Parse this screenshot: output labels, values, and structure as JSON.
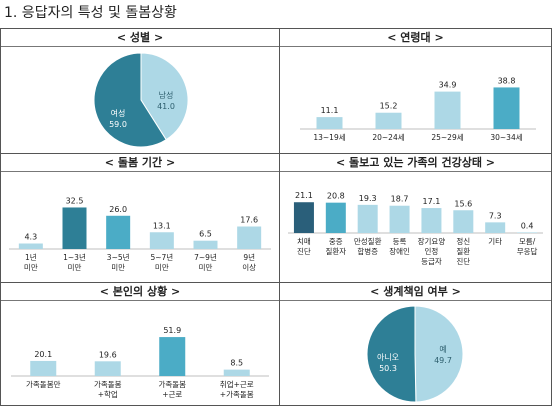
{
  "page_title": "1. 응답자의 특성 및 돌봄상황",
  "colors": {
    "light": "#add8e6",
    "dark": "#2e7f96",
    "mid": "#4bacc6",
    "navy": "#2a5f7a"
  },
  "chart_data": [
    {
      "id": "gender",
      "type": "pie",
      "title": "< 성별 >",
      "slices": [
        {
          "label": "남성",
          "value": 41.0,
          "value_text": "41.0",
          "color": "#add8e6"
        },
        {
          "label": "여성",
          "value": 59.0,
          "value_text": "59.0",
          "color": "#2e7f96"
        }
      ]
    },
    {
      "id": "age",
      "type": "bar",
      "title": "< 연령대 >",
      "categories": [
        "13~19세",
        "20~24세",
        "25~29세",
        "30~34세"
      ],
      "values": [
        11.1,
        15.2,
        34.9,
        38.8
      ],
      "colors": [
        "#add8e6",
        "#add8e6",
        "#add8e6",
        "#4bacc6"
      ],
      "ylim": [
        0,
        42
      ]
    },
    {
      "id": "duration",
      "type": "bar",
      "title": "< 돌봄 기간 >",
      "categories": [
        "1년\n미만",
        "1~3년\n미만",
        "3~5년\n미만",
        "5~7년\n미만",
        "7~9년\n미만",
        "9년\n이상"
      ],
      "values": [
        4.3,
        32.5,
        26.0,
        13.1,
        6.5,
        17.6
      ],
      "colors": [
        "#add8e6",
        "#2e7f96",
        "#4bacc6",
        "#add8e6",
        "#add8e6",
        "#add8e6"
      ],
      "ylim": [
        0,
        36
      ]
    },
    {
      "id": "family_health",
      "type": "bar",
      "title": "< 돌보고 있는 가족의 건강상태 >",
      "categories": [
        "치매\n진단",
        "중증\n질환자",
        "만성질환\n합병증",
        "등록\n장애인",
        "장기요양\n인정\n등급자",
        "정신\n질환\n진단",
        "기타",
        "모름/\n무응답"
      ],
      "values": [
        21.1,
        20.8,
        19.3,
        18.7,
        17.1,
        15.6,
        7.3,
        0.4
      ],
      "colors": [
        "#2a5f7a",
        "#4bacc6",
        "#add8e6",
        "#add8e6",
        "#add8e6",
        "#add8e6",
        "#add8e6",
        "#add8e6"
      ],
      "ylim": [
        0,
        24
      ]
    },
    {
      "id": "own_status",
      "type": "bar",
      "title": "< 본인의 상황 >",
      "categories": [
        "가족돌봄만",
        "가족돌봄\n+학업",
        "가족돌봄\n+근로",
        "취업+근로\n+가족돌봄"
      ],
      "values": [
        20.1,
        19.6,
        51.9,
        8.5
      ],
      "colors": [
        "#add8e6",
        "#add8e6",
        "#4bacc6",
        "#add8e6"
      ],
      "ylim": [
        0,
        56
      ]
    },
    {
      "id": "livelihood",
      "type": "pie",
      "title": "< 생계책임 여부 >",
      "slices": [
        {
          "label": "예",
          "value": 49.7,
          "value_text": "49.7",
          "color": "#add8e6"
        },
        {
          "label": "아니오",
          "value": 50.3,
          "value_text": "50.3",
          "color": "#2e7f96"
        }
      ]
    }
  ]
}
